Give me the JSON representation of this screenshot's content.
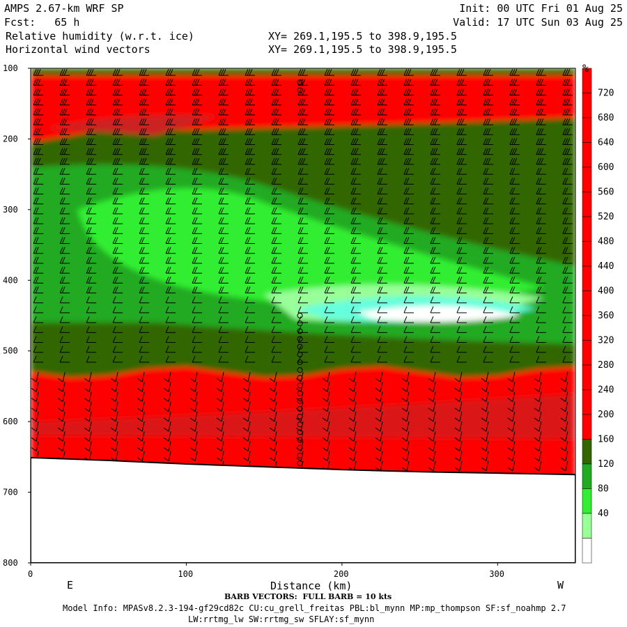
{
  "header": {
    "model_title": "AMPS 2.67-km WRF SP",
    "forecast": "Fcst:   65 h",
    "field_1": "Relative humidity (w.r.t. ice)",
    "field_2": "Horizontal wind vectors",
    "init": "Init: 00 UTC Fri 01 Aug 25",
    "valid": "Valid: 17 UTC Sun 03 Aug 25",
    "xy_1": "XY= 269.1,195.5 to 398.9,195.5",
    "xy_2": "XY= 269.1,195.5 to 398.9,195.5"
  },
  "footer": {
    "barb_note": "BARB VECTORS:  FULL BARB = 10 kts",
    "model_info": "Model Info: MPASv8.2.3-194-gf29cd82c CU:cu_grell_freitas PBL:bl_mynn MP:mp_thompson SF:sf_noahmp 2.7",
    "model_info_2": "LW:rrtmg_lw SW:rrtmg_sw SFLAY:sf_mynn"
  },
  "colors": {
    "red": "#ff0000",
    "darkred": "#cc2222",
    "olive": "#336600",
    "green": "#22aa22",
    "bright_green": "#33ee33",
    "light_green": "#99ff99",
    "cyan": "#66ffdd",
    "white": "#ffffff"
  },
  "chart_data": {
    "type": "heatmap",
    "xlabel": "Distance (km)",
    "x_end_labels": {
      "left": "E",
      "right": "W"
    },
    "ylabel": "",
    "xlim": [
      0,
      350
    ],
    "ylim": [
      800,
      100
    ],
    "x_ticks": [
      "0",
      "100",
      "200",
      "300"
    ],
    "y_ticks": [
      "100",
      "200",
      "300",
      "400",
      "500",
      "600",
      "700",
      "800"
    ],
    "colorbar": {
      "unit": "%",
      "labels": [
        "720",
        "680",
        "640",
        "600",
        "560",
        "520",
        "480",
        "440",
        "400",
        "360",
        "320",
        "280",
        "240",
        "200",
        "160",
        "120",
        "80",
        "40"
      ]
    },
    "surface_pressure": {
      "x": [
        0,
        50,
        100,
        150,
        200,
        250,
        300,
        350
      ],
      "p": [
        651,
        655,
        660,
        664,
        668,
        671,
        673,
        675
      ]
    },
    "moist_layer_top_p": 520,
    "dry_tongue": {
      "x_start": 20,
      "x_end": 350,
      "p_top_left": 240,
      "p_bottom_left": 420,
      "p_top_right": 380,
      "p_bottom_right": 490
    },
    "upper_moist_band": {
      "p_top": 110,
      "p_bottom": 175
    }
  }
}
